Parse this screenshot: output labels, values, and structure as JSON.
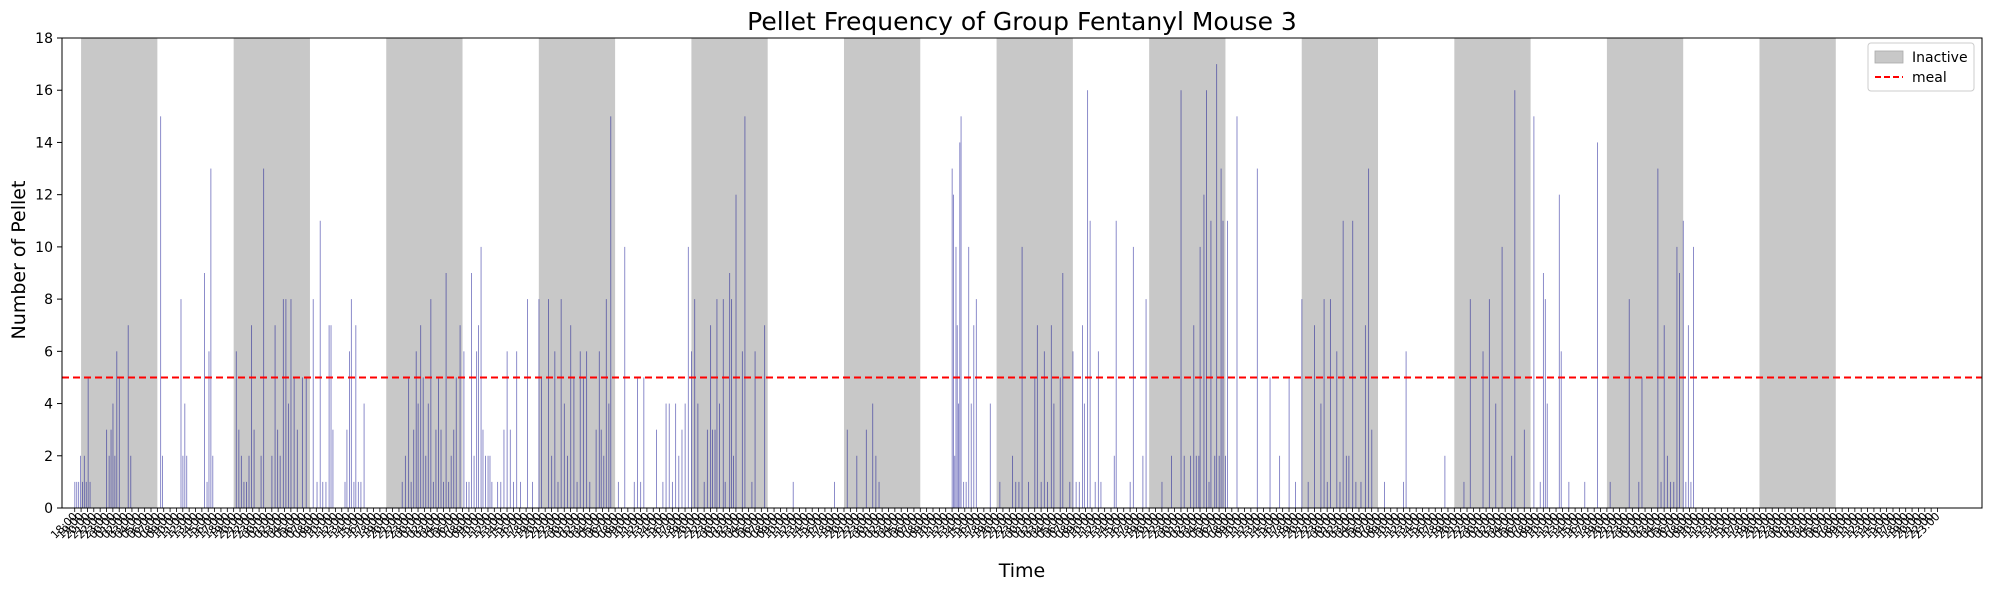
{
  "chart_data": {
    "type": "bar",
    "title": "Pellet Frequency of Group Fentanyl Mouse 3",
    "xlabel": "Time",
    "ylabel": "Number of Pellet",
    "ylim": [
      0,
      18
    ],
    "yticks": [
      0,
      2,
      4,
      6,
      8,
      10,
      12,
      14,
      16,
      18
    ],
    "x_unit": "hours since first x tick (18:00)",
    "xlim": [
      -2,
      300
    ],
    "x_tick_labels": [
      "18:00",
      "19:00",
      "20:00",
      "21:00",
      "22:00",
      "23:00",
      "00:00",
      "01:00",
      "02:00",
      "03:00",
      "04:00",
      "05:00",
      "06:00",
      "07:00",
      "08:00",
      "09:00",
      "10:00",
      "11:00",
      "12:00",
      "13:00",
      "14:00",
      "15:00",
      "16:00",
      "17:00"
    ],
    "x_tick_count": 294,
    "bar_color": "#00008b",
    "bar_opacity": 0.5,
    "inactive_color": "#c8c8c8",
    "meal_color": "#ff0000",
    "meal_threshold": 5,
    "legend": {
      "position": "upper-right",
      "entries": [
        "Inactive",
        "meal"
      ]
    },
    "inactive_periods": [
      [
        1,
        13
      ],
      [
        25,
        37
      ],
      [
        49,
        61
      ],
      [
        73,
        85
      ],
      [
        97,
        109
      ],
      [
        121,
        133
      ],
      [
        145,
        157
      ],
      [
        169,
        181
      ],
      [
        193,
        205
      ],
      [
        217,
        229
      ],
      [
        241,
        253
      ],
      [
        265,
        277
      ]
    ],
    "bars": [
      [
        0.0,
        1
      ],
      [
        0.3,
        1
      ],
      [
        0.6,
        1
      ],
      [
        0.9,
        2
      ],
      [
        1.2,
        1
      ],
      [
        1.5,
        2
      ],
      [
        1.8,
        1
      ],
      [
        2.1,
        5
      ],
      [
        2.4,
        1
      ],
      [
        5.0,
        3
      ],
      [
        5.4,
        2
      ],
      [
        5.7,
        3
      ],
      [
        6.0,
        4
      ],
      [
        6.3,
        2
      ],
      [
        6.6,
        6
      ],
      [
        7.0,
        5
      ],
      [
        8.4,
        7
      ],
      [
        8.8,
        2
      ],
      [
        13.5,
        15
      ],
      [
        13.8,
        2
      ],
      [
        16.7,
        8
      ],
      [
        17.0,
        2
      ],
      [
        17.3,
        4
      ],
      [
        17.6,
        2
      ],
      [
        20.4,
        9
      ],
      [
        20.8,
        1
      ],
      [
        21.1,
        6
      ],
      [
        21.4,
        13
      ],
      [
        21.7,
        2
      ],
      [
        25.4,
        6
      ],
      [
        25.8,
        3
      ],
      [
        26.2,
        2
      ],
      [
        26.6,
        1
      ],
      [
        27.0,
        1
      ],
      [
        27.4,
        2
      ],
      [
        27.8,
        7
      ],
      [
        28.2,
        3
      ],
      [
        29.3,
        2
      ],
      [
        29.7,
        13
      ],
      [
        31.0,
        2
      ],
      [
        31.5,
        7
      ],
      [
        31.9,
        3
      ],
      [
        32.3,
        2
      ],
      [
        32.8,
        8
      ],
      [
        33.2,
        8
      ],
      [
        33.6,
        4
      ],
      [
        34.0,
        8
      ],
      [
        34.5,
        5
      ],
      [
        35.0,
        3
      ],
      [
        35.8,
        5
      ],
      [
        36.4,
        5
      ],
      [
        37.5,
        8
      ],
      [
        38.1,
        1
      ],
      [
        38.6,
        11
      ],
      [
        39.0,
        1
      ],
      [
        39.5,
        1
      ],
      [
        40.0,
        7
      ],
      [
        40.3,
        7
      ],
      [
        40.6,
        3
      ],
      [
        42.5,
        1
      ],
      [
        42.8,
        3
      ],
      [
        43.2,
        6
      ],
      [
        43.5,
        8
      ],
      [
        43.9,
        1
      ],
      [
        44.2,
        7
      ],
      [
        44.6,
        1
      ],
      [
        45.0,
        1
      ],
      [
        45.5,
        4
      ],
      [
        51.5,
        1
      ],
      [
        52.0,
        2
      ],
      [
        52.5,
        5
      ],
      [
        52.9,
        1
      ],
      [
        53.3,
        3
      ],
      [
        53.7,
        6
      ],
      [
        54.0,
        4
      ],
      [
        54.4,
        7
      ],
      [
        54.8,
        5
      ],
      [
        55.2,
        2
      ],
      [
        55.6,
        4
      ],
      [
        56.0,
        8
      ],
      [
        56.4,
        1
      ],
      [
        56.8,
        3
      ],
      [
        57.2,
        5
      ],
      [
        57.6,
        3
      ],
      [
        58.0,
        1
      ],
      [
        58.4,
        9
      ],
      [
        58.8,
        1
      ],
      [
        59.2,
        2
      ],
      [
        59.6,
        3
      ],
      [
        60.0,
        5
      ],
      [
        60.6,
        7
      ],
      [
        61.2,
        6
      ],
      [
        61.6,
        1
      ],
      [
        62.0,
        1
      ],
      [
        62.4,
        9
      ],
      [
        62.8,
        2
      ],
      [
        63.2,
        6
      ],
      [
        63.5,
        7
      ],
      [
        63.9,
        10
      ],
      [
        64.2,
        3
      ],
      [
        64.6,
        2
      ],
      [
        65.0,
        2
      ],
      [
        65.3,
        2
      ],
      [
        65.6,
        1
      ],
      [
        66.5,
        1
      ],
      [
        67.0,
        1
      ],
      [
        67.5,
        3
      ],
      [
        68.0,
        6
      ],
      [
        68.5,
        3
      ],
      [
        69.0,
        1
      ],
      [
        69.5,
        6
      ],
      [
        70.1,
        1
      ],
      [
        71.2,
        8
      ],
      [
        72.0,
        1
      ],
      [
        73.0,
        8
      ],
      [
        73.4,
        5
      ],
      [
        74.5,
        8
      ],
      [
        75.0,
        2
      ],
      [
        75.5,
        6
      ],
      [
        76.0,
        1
      ],
      [
        76.5,
        8
      ],
      [
        77.0,
        4
      ],
      [
        77.5,
        2
      ],
      [
        78.0,
        7
      ],
      [
        78.5,
        5
      ],
      [
        79.0,
        1
      ],
      [
        79.5,
        6
      ],
      [
        80.0,
        5
      ],
      [
        80.5,
        6
      ],
      [
        81.0,
        1
      ],
      [
        82.0,
        3
      ],
      [
        82.5,
        6
      ],
      [
        82.8,
        3
      ],
      [
        83.2,
        2
      ],
      [
        83.6,
        8
      ],
      [
        84.0,
        4
      ],
      [
        84.3,
        15
      ],
      [
        85.5,
        1
      ],
      [
        86.5,
        10
      ],
      [
        88.0,
        1
      ],
      [
        88.5,
        5
      ],
      [
        89.0,
        1
      ],
      [
        89.5,
        5
      ],
      [
        91.5,
        3
      ],
      [
        92.5,
        1
      ],
      [
        93.0,
        4
      ],
      [
        93.5,
        4
      ],
      [
        94.0,
        1
      ],
      [
        94.5,
        4
      ],
      [
        95.0,
        2
      ],
      [
        95.5,
        3
      ],
      [
        96.0,
        4
      ],
      [
        96.5,
        10
      ],
      [
        97.0,
        6
      ],
      [
        97.5,
        8
      ],
      [
        98.0,
        4
      ],
      [
        99.0,
        1
      ],
      [
        99.5,
        3
      ],
      [
        100.0,
        7
      ],
      [
        100.3,
        3
      ],
      [
        100.7,
        3
      ],
      [
        101.0,
        8
      ],
      [
        101.4,
        4
      ],
      [
        102.0,
        8
      ],
      [
        102.3,
        1
      ],
      [
        103.0,
        9
      ],
      [
        103.3,
        8
      ],
      [
        103.6,
        2
      ],
      [
        104.0,
        12
      ],
      [
        105.0,
        6
      ],
      [
        105.4,
        15
      ],
      [
        106.5,
        1
      ],
      [
        107.0,
        6
      ],
      [
        108.5,
        7
      ],
      [
        113.0,
        1
      ],
      [
        119.5,
        1
      ],
      [
        121.5,
        3
      ],
      [
        123.0,
        2
      ],
      [
        124.5,
        3
      ],
      [
        125.5,
        4
      ],
      [
        126.0,
        2
      ],
      [
        126.5,
        1
      ],
      [
        138.0,
        13
      ],
      [
        138.2,
        12
      ],
      [
        138.4,
        2
      ],
      [
        138.6,
        10
      ],
      [
        138.8,
        7
      ],
      [
        139.0,
        4
      ],
      [
        139.2,
        14
      ],
      [
        139.4,
        15
      ],
      [
        139.8,
        1
      ],
      [
        140.2,
        1
      ],
      [
        140.6,
        10
      ],
      [
        141.0,
        4
      ],
      [
        141.4,
        7
      ],
      [
        141.8,
        8
      ],
      [
        144.0,
        4
      ],
      [
        145.5,
        1
      ],
      [
        147.5,
        2
      ],
      [
        148.0,
        1
      ],
      [
        148.5,
        1
      ],
      [
        149.0,
        10
      ],
      [
        150.0,
        1
      ],
      [
        151.0,
        5
      ],
      [
        151.4,
        7
      ],
      [
        152.0,
        1
      ],
      [
        152.5,
        6
      ],
      [
        153.0,
        1
      ],
      [
        153.6,
        7
      ],
      [
        154.0,
        4
      ],
      [
        155.0,
        5
      ],
      [
        155.4,
        9
      ],
      [
        156.5,
        1
      ],
      [
        157.0,
        6
      ],
      [
        157.5,
        1
      ],
      [
        158.0,
        1
      ],
      [
        158.5,
        7
      ],
      [
        158.8,
        4
      ],
      [
        159.3,
        16
      ],
      [
        159.7,
        11
      ],
      [
        160.5,
        1
      ],
      [
        161.0,
        6
      ],
      [
        161.4,
        1
      ],
      [
        163.5,
        2
      ],
      [
        163.8,
        11
      ],
      [
        166.0,
        1
      ],
      [
        166.5,
        10
      ],
      [
        168.0,
        2
      ],
      [
        168.5,
        8
      ],
      [
        171.0,
        1
      ],
      [
        172.5,
        2
      ],
      [
        174.0,
        16
      ],
      [
        174.5,
        2
      ],
      [
        175.5,
        2
      ],
      [
        176.0,
        7
      ],
      [
        176.4,
        2
      ],
      [
        176.8,
        2
      ],
      [
        177.0,
        10
      ],
      [
        177.6,
        12
      ],
      [
        178.0,
        16
      ],
      [
        178.4,
        1
      ],
      [
        178.7,
        11
      ],
      [
        179.3,
        2
      ],
      [
        179.6,
        17
      ],
      [
        180.0,
        2
      ],
      [
        180.3,
        13
      ],
      [
        180.6,
        11
      ],
      [
        181.0,
        2
      ],
      [
        181.3,
        11
      ],
      [
        182.8,
        15
      ],
      [
        186.0,
        13
      ],
      [
        188.0,
        5
      ],
      [
        189.5,
        2
      ],
      [
        191.0,
        5
      ],
      [
        192.0,
        1
      ],
      [
        193.0,
        8
      ],
      [
        194.0,
        1
      ],
      [
        195.0,
        7
      ],
      [
        196.0,
        4
      ],
      [
        196.5,
        8
      ],
      [
        197.0,
        1
      ],
      [
        197.5,
        8
      ],
      [
        198.5,
        6
      ],
      [
        199.0,
        1
      ],
      [
        199.5,
        11
      ],
      [
        200.0,
        2
      ],
      [
        200.4,
        2
      ],
      [
        201.0,
        11
      ],
      [
        201.5,
        1
      ],
      [
        202.3,
        1
      ],
      [
        203.0,
        7
      ],
      [
        203.5,
        13
      ],
      [
        204.0,
        3
      ],
      [
        206.0,
        1
      ],
      [
        209.0,
        1
      ],
      [
        209.4,
        6
      ],
      [
        215.5,
        2
      ],
      [
        218.5,
        1
      ],
      [
        219.5,
        8
      ],
      [
        221.5,
        6
      ],
      [
        222.5,
        8
      ],
      [
        223.5,
        4
      ],
      [
        224.5,
        10
      ],
      [
        226.0,
        2
      ],
      [
        226.5,
        16
      ],
      [
        228.0,
        3
      ],
      [
        229.5,
        15
      ],
      [
        230.5,
        1
      ],
      [
        231.0,
        9
      ],
      [
        231.3,
        8
      ],
      [
        231.6,
        4
      ],
      [
        233.5,
        12
      ],
      [
        233.8,
        6
      ],
      [
        235.0,
        1
      ],
      [
        237.5,
        1
      ],
      [
        239.5,
        14
      ],
      [
        241.5,
        1
      ],
      [
        244.5,
        8
      ],
      [
        246.0,
        1
      ],
      [
        246.5,
        5
      ],
      [
        249.0,
        13
      ],
      [
        249.5,
        1
      ],
      [
        250.0,
        7
      ],
      [
        250.5,
        2
      ],
      [
        251.0,
        1
      ],
      [
        251.5,
        1
      ],
      [
        252.0,
        10
      ],
      [
        252.4,
        9
      ],
      [
        253.0,
        11
      ],
      [
        253.4,
        1
      ],
      [
        253.8,
        7
      ],
      [
        254.2,
        1
      ],
      [
        254.6,
        10
      ]
    ]
  }
}
